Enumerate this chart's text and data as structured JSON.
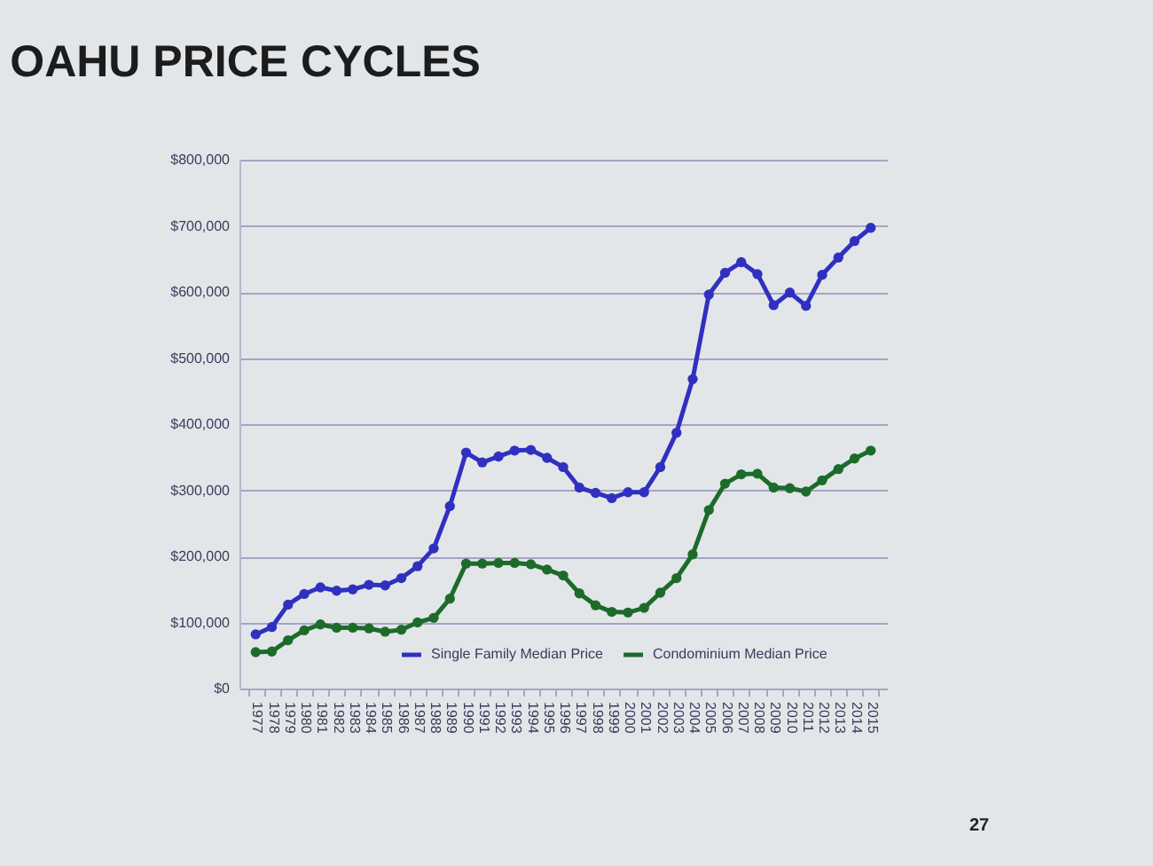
{
  "chart_data": {
    "type": "line",
    "title": "OAHU PRICE CYCLES",
    "categories": [
      "1977",
      "1978",
      "1979",
      "1980",
      "1981",
      "1982",
      "1983",
      "1984",
      "1985",
      "1986",
      "1987",
      "1988",
      "1989",
      "1990",
      "1991",
      "1992",
      "1993",
      "1994",
      "1995",
      "1996",
      "1997",
      "1998",
      "1999",
      "2000",
      "2001",
      "2002",
      "2003",
      "2004",
      "2005",
      "2006",
      "2007",
      "2008",
      "2009",
      "2010",
      "2011",
      "2012",
      "2013",
      "2014",
      "2015"
    ],
    "series": [
      {
        "name": "Single Family Median Price",
        "color": "#3030c0",
        "values": [
          82000,
          93000,
          127000,
          143000,
          153000,
          148000,
          150000,
          157000,
          156000,
          167000,
          185000,
          212000,
          276000,
          357000,
          342000,
          351000,
          360000,
          361000,
          349000,
          335000,
          304000,
          296000,
          288000,
          297000,
          297000,
          335000,
          387000,
          468000,
          596000,
          629000,
          645000,
          627000,
          580000,
          599000,
          579000,
          626000,
          652000,
          677000,
          697000
        ]
      },
      {
        "name": "Condominium Median Price",
        "color": "#1d6b2a",
        "values": [
          55000,
          56000,
          73000,
          88000,
          97000,
          92000,
          92000,
          91000,
          86000,
          89000,
          100000,
          107000,
          136000,
          189000,
          189000,
          190000,
          190000,
          188000,
          180000,
          171000,
          144000,
          126000,
          116000,
          115000,
          122000,
          145000,
          167000,
          203000,
          270000,
          310000,
          324000,
          325000,
          304000,
          303000,
          298000,
          315000,
          332000,
          348000,
          360000
        ]
      }
    ],
    "ylim": [
      0,
      800000
    ],
    "yticks": [
      {
        "value": 0,
        "label": "$0"
      },
      {
        "value": 100000,
        "label": "$100,000"
      },
      {
        "value": 200000,
        "label": "$200,000"
      },
      {
        "value": 300000,
        "label": "$300,000"
      },
      {
        "value": 400000,
        "label": "$400,000"
      },
      {
        "value": 500000,
        "label": "$500,000"
      },
      {
        "value": 600000,
        "label": "$600,000"
      },
      {
        "value": 700000,
        "label": "$700,000"
      },
      {
        "value": 800000,
        "label": "$800,000"
      }
    ],
    "grid": "y",
    "legend": "bottom",
    "marker": "circle",
    "line_style": "solid",
    "annotations": [
      "27"
    ]
  }
}
